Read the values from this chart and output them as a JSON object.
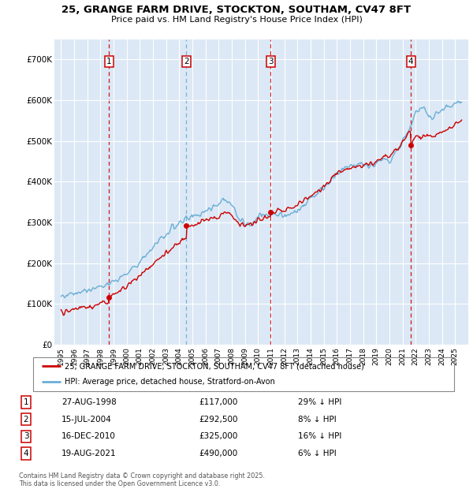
{
  "title": "25, GRANGE FARM DRIVE, STOCKTON, SOUTHAM, CV47 8FT",
  "subtitle": "Price paid vs. HM Land Registry's House Price Index (HPI)",
  "plot_bg_color": "#dce8f5",
  "transactions": [
    {
      "date_num": 1998.65,
      "price": 117000,
      "label": "1",
      "vline_color": "#cc0000"
    },
    {
      "date_num": 2004.54,
      "price": 292500,
      "label": "2",
      "vline_color": "#6aaed6"
    },
    {
      "date_num": 2010.96,
      "price": 325000,
      "label": "3",
      "vline_color": "#cc0000"
    },
    {
      "date_num": 2021.63,
      "price": 490000,
      "label": "4",
      "vline_color": "#cc0000"
    }
  ],
  "transaction_dates_str": [
    "27-AUG-1998",
    "15-JUL-2004",
    "16-DEC-2010",
    "19-AUG-2021"
  ],
  "transaction_prices_str": [
    "£117,000",
    "£292,500",
    "£325,000",
    "£490,000"
  ],
  "transaction_notes": [
    "29% ↓ HPI",
    "8% ↓ HPI",
    "16% ↓ HPI",
    "6% ↓ HPI"
  ],
  "hpi_line_color": "#6aaed6",
  "price_line_color": "#cc0000",
  "yticks": [
    0,
    100000,
    200000,
    300000,
    400000,
    500000,
    600000,
    700000
  ],
  "ytick_labels": [
    "£0",
    "£100K",
    "£200K",
    "£300K",
    "£400K",
    "£500K",
    "£600K",
    "£700K"
  ],
  "xlim": [
    1994.5,
    2026.0
  ],
  "ylim": [
    0,
    750000
  ],
  "legend_label_price": "25, GRANGE FARM DRIVE, STOCKTON, SOUTHAM, CV47 8FT (detached house)",
  "legend_label_hpi": "HPI: Average price, detached house, Stratford-on-Avon",
  "footer": "Contains HM Land Registry data © Crown copyright and database right 2025.\nThis data is licensed under the Open Government Licence v3.0."
}
